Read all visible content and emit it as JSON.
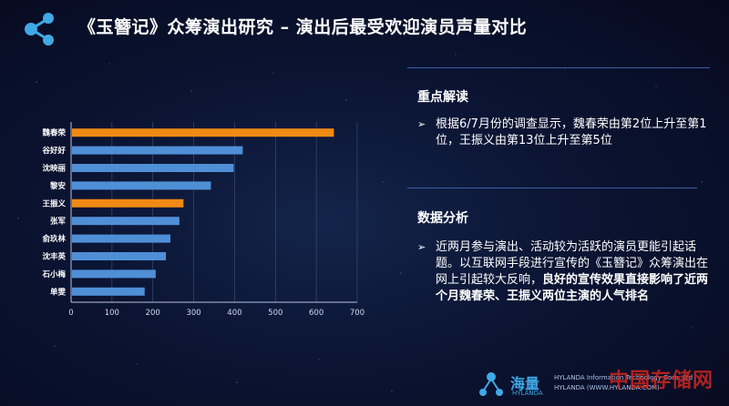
{
  "header": {
    "title": "《玉簪记》众筹演出研究 – 演出后最受欢迎演员声量对比"
  },
  "chart_data": {
    "type": "bar",
    "orientation": "horizontal",
    "categories": [
      "魏春荣",
      "谷好好",
      "沈映丽",
      "黎安",
      "王振义",
      "张军",
      "俞玖林",
      "沈丰英",
      "石小梅",
      "单雯"
    ],
    "values": [
      643,
      420,
      398,
      342,
      275,
      265,
      243,
      232,
      207,
      180
    ],
    "highlighted": [
      "魏春荣",
      "王振义"
    ],
    "xlim": [
      0,
      700
    ],
    "xticks": [
      0,
      100,
      200,
      300,
      400,
      500,
      600,
      700
    ],
    "grid": true,
    "colors": {
      "normal": "#4f8fd6",
      "highlight": "#f08a14"
    }
  },
  "panel": {
    "section1": {
      "title": "重点解读",
      "bullet": "根据6/7月份的调查显示，魏春荣由第2位上升至第1位，王振义由第13位上升至第5位"
    },
    "section2": {
      "title": "数据分析",
      "bullet_plain": "近两月参与演出、活动较为活跃的演员更能引起话题。以互联网手段进行宣传的《玉簪记》众筹演出在网上引起较大反响，",
      "bullet_bold": "良好的宣传效果直接影响了近两个月魏春荣、王振义两位主演的人气排名"
    }
  },
  "brand": {
    "name_cn": "海量",
    "name_en": "HYLANDA",
    "company": "HYLANDA Information Technology Corp.,Ltd",
    "url": "HYLANDA (WWW.HYLANDA.COM)"
  },
  "watermark": "中国存储网",
  "colors": {
    "accent_line": "#3c5fa0",
    "logo": "#3fa9e6"
  }
}
